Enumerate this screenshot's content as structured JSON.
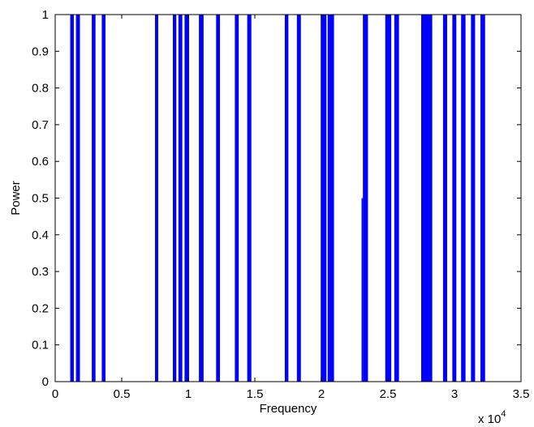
{
  "chart_data": {
    "type": "bar",
    "title": "",
    "xlabel": "Frequency",
    "ylabel": "Power",
    "x_multiplier_label": "x 10",
    "x_multiplier_exponent": "4",
    "xlim": [
      0,
      35000
    ],
    "ylim": [
      0,
      1
    ],
    "x_ticks": [
      0,
      5000,
      10000,
      15000,
      20000,
      25000,
      30000,
      35000
    ],
    "x_tick_labels": [
      "0",
      "0.5",
      "1",
      "1.5",
      "2",
      "2.5",
      "3",
      "3.5"
    ],
    "y_ticks": [
      0,
      0.1,
      0.2,
      0.3,
      0.4,
      0.5,
      0.6,
      0.7,
      0.8,
      0.9,
      1
    ],
    "y_tick_labels": [
      "0",
      "0.1",
      "0.2",
      "0.3",
      "0.4",
      "0.5",
      "0.6",
      "0.7",
      "0.8",
      "0.9",
      "1"
    ],
    "grid": false,
    "legend": "none",
    "bar_color": "#0000ff",
    "series": [
      {
        "intervals": [
          [
            1130,
            1400,
            1
          ],
          [
            1560,
            1860,
            1
          ],
          [
            2750,
            3030,
            1
          ],
          [
            3500,
            3780,
            1
          ],
          [
            7500,
            7740,
            1
          ],
          [
            8840,
            9100,
            1
          ],
          [
            9260,
            9550,
            1
          ],
          [
            9720,
            10060,
            1
          ],
          [
            10800,
            11150,
            1
          ],
          [
            12090,
            12380,
            1
          ],
          [
            13500,
            13790,
            1
          ],
          [
            14430,
            14740,
            1
          ],
          [
            17250,
            17520,
            1
          ],
          [
            18160,
            18460,
            1
          ],
          [
            19950,
            20380,
            1
          ],
          [
            20470,
            20950,
            1
          ],
          [
            23020,
            23120,
            0.5
          ],
          [
            23120,
            23500,
            1
          ],
          [
            24800,
            25250,
            1
          ],
          [
            25480,
            25830,
            1
          ],
          [
            27500,
            28330,
            1
          ],
          [
            29140,
            29450,
            1
          ],
          [
            29840,
            30140,
            1
          ],
          [
            30500,
            30830,
            1
          ],
          [
            31240,
            31550,
            1
          ],
          [
            31950,
            32300,
            1
          ]
        ]
      }
    ]
  }
}
